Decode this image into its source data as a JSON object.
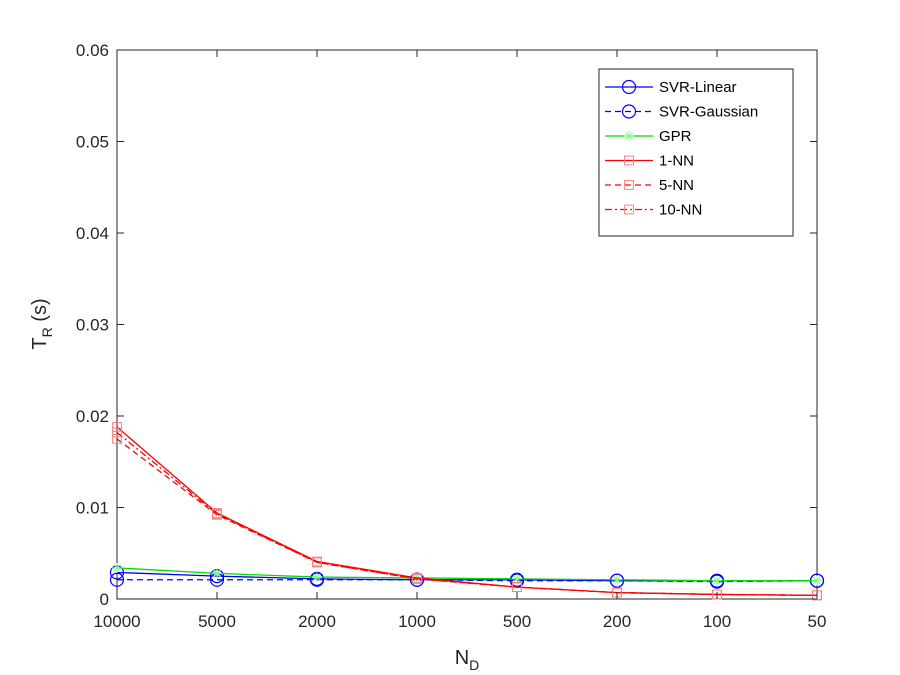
{
  "chart_data": {
    "type": "line",
    "title": "",
    "xlabel": "N",
    "xlabel_sub": "D",
    "ylabel": "T",
    "ylabel_sub": "R",
    "ylabel_unit": " (s)",
    "categories": [
      "10000",
      "5000",
      "2000",
      "1000",
      "500",
      "200",
      "100",
      "50"
    ],
    "ylim": [
      0,
      0.06
    ],
    "yticks": [
      0,
      0.01,
      0.02,
      0.03,
      0.04,
      0.05,
      0.06
    ],
    "ytick_labels": [
      "0",
      "0.01",
      "0.02",
      "0.03",
      "0.04",
      "0.05",
      "0.06"
    ],
    "grid": false,
    "legend_position": "top-right",
    "series": [
      {
        "name": "SVR-Linear",
        "color": "#0000ff",
        "dash": "solid",
        "marker": "circle",
        "values": [
          0.0029,
          0.0025,
          0.0022,
          0.0021,
          0.0021,
          0.002,
          0.002,
          0.002
        ]
      },
      {
        "name": "SVR-Gaussian",
        "color": "#0000ff",
        "dash": "dashed",
        "marker": "circle",
        "values": [
          0.0021,
          0.0021,
          0.0021,
          0.0021,
          0.002,
          0.002,
          0.0019,
          0.002
        ]
      },
      {
        "name": "GPR",
        "color": "#00dd00",
        "dash": "solid",
        "marker": "asterisk",
        "values": [
          0.0034,
          0.0028,
          0.0024,
          0.0023,
          0.0022,
          0.0021,
          0.002,
          0.002
        ]
      },
      {
        "name": "1-NN",
        "color": "#ff0000",
        "dash": "solid",
        "marker": "square",
        "values": [
          0.0188,
          0.0094,
          0.0041,
          0.0023,
          0.0013,
          0.0007,
          0.0005,
          0.0004
        ]
      },
      {
        "name": "5-NN",
        "color": "#ff0000",
        "dash": "dashed",
        "marker": "square",
        "values": [
          0.0175,
          0.0092,
          0.004,
          0.0022,
          0.0013,
          0.0007,
          0.0005,
          0.0004
        ]
      },
      {
        "name": "10-NN",
        "color": "#ff0000",
        "dash": "dashdot",
        "marker": "square",
        "values": [
          0.0182,
          0.0093,
          0.004,
          0.0022,
          0.0013,
          0.0007,
          0.0005,
          0.0004
        ]
      }
    ]
  }
}
